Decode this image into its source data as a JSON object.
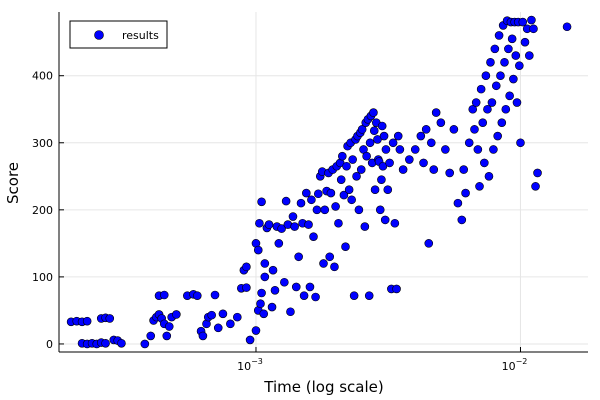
{
  "chart_data": {
    "type": "scatter",
    "xlabel": "Time (log scale)",
    "ylabel": "Score",
    "x_scale": "log",
    "xlim": [
      0.00018,
      0.018
    ],
    "ylim": [
      -12,
      495
    ],
    "x_ticks": [
      {
        "value": 0.001,
        "base": "10",
        "exp": "−3"
      },
      {
        "value": 0.01,
        "base": "10",
        "exp": "−2"
      }
    ],
    "y_ticks": [
      0,
      100,
      200,
      300,
      400
    ],
    "grid": true,
    "legend_position": "top-left",
    "colors": {
      "marker_fill": "#0000ff",
      "marker_stroke": "#000000"
    },
    "series": [
      {
        "name": "results",
        "points": [
          [
            0.0002,
            33
          ],
          [
            0.00021,
            34
          ],
          [
            0.00022,
            33
          ],
          [
            0.00023,
            34
          ],
          [
            0.00022,
            1
          ],
          [
            0.00023,
            0
          ],
          [
            0.00024,
            1
          ],
          [
            0.00025,
            0
          ],
          [
            0.00026,
            38
          ],
          [
            0.00027,
            39
          ],
          [
            0.00028,
            38
          ],
          [
            0.00026,
            2
          ],
          [
            0.00027,
            1
          ],
          [
            0.00029,
            6
          ],
          [
            0.0003,
            5
          ],
          [
            0.00031,
            1
          ],
          [
            0.00038,
            0
          ],
          [
            0.0004,
            12
          ],
          [
            0.00041,
            35
          ],
          [
            0.00042,
            40
          ],
          [
            0.00043,
            44
          ],
          [
            0.00044,
            38
          ],
          [
            0.00045,
            30
          ],
          [
            0.00043,
            72
          ],
          [
            0.00045,
            73
          ],
          [
            0.00046,
            12
          ],
          [
            0.00047,
            26
          ],
          [
            0.00048,
            40
          ],
          [
            0.0005,
            44
          ],
          [
            0.00055,
            72
          ],
          [
            0.00058,
            74
          ],
          [
            0.0006,
            72
          ],
          [
            0.00062,
            19
          ],
          [
            0.00063,
            12
          ],
          [
            0.00065,
            30
          ],
          [
            0.00066,
            40
          ],
          [
            0.00068,
            43
          ],
          [
            0.0007,
            73
          ],
          [
            0.00072,
            24
          ],
          [
            0.00075,
            45
          ],
          [
            0.0008,
            30
          ],
          [
            0.00085,
            40
          ],
          [
            0.00088,
            83
          ],
          [
            0.0009,
            110
          ],
          [
            0.00092,
            115
          ],
          [
            0.00092,
            84
          ],
          [
            0.00095,
            6
          ],
          [
            0.001,
            20
          ],
          [
            0.00102,
            50
          ],
          [
            0.00104,
            60
          ],
          [
            0.00105,
            76
          ],
          [
            0.00107,
            45
          ],
          [
            0.00108,
            100
          ],
          [
            0.001,
            150
          ],
          [
            0.00102,
            140
          ],
          [
            0.00103,
            180
          ],
          [
            0.00105,
            212
          ],
          [
            0.00108,
            120
          ],
          [
            0.0011,
            173
          ],
          [
            0.00112,
            178
          ],
          [
            0.00115,
            55
          ],
          [
            0.00116,
            110
          ],
          [
            0.00118,
            80
          ],
          [
            0.0012,
            175
          ],
          [
            0.00122,
            150
          ],
          [
            0.00125,
            172
          ],
          [
            0.00128,
            92
          ],
          [
            0.0013,
            213
          ],
          [
            0.00132,
            178
          ],
          [
            0.00135,
            48
          ],
          [
            0.00138,
            190
          ],
          [
            0.0014,
            175
          ],
          [
            0.00142,
            85
          ],
          [
            0.00145,
            130
          ],
          [
            0.00148,
            210
          ],
          [
            0.0015,
            180
          ],
          [
            0.00152,
            72
          ],
          [
            0.00155,
            225
          ],
          [
            0.00158,
            178
          ],
          [
            0.0016,
            85
          ],
          [
            0.00162,
            215
          ],
          [
            0.00165,
            160
          ],
          [
            0.00168,
            70
          ],
          [
            0.0017,
            200
          ],
          [
            0.00172,
            224
          ],
          [
            0.00175,
            250
          ],
          [
            0.00178,
            257
          ],
          [
            0.0018,
            120
          ],
          [
            0.00182,
            200
          ],
          [
            0.00185,
            228
          ],
          [
            0.00188,
            255
          ],
          [
            0.0019,
            130
          ],
          [
            0.00192,
            225
          ],
          [
            0.00195,
            260
          ],
          [
            0.00198,
            115
          ],
          [
            0.002,
            205
          ],
          [
            0.00202,
            265
          ],
          [
            0.00205,
            180
          ],
          [
            0.00208,
            270
          ],
          [
            0.0021,
            245
          ],
          [
            0.00212,
            280
          ],
          [
            0.00215,
            222
          ],
          [
            0.00218,
            145
          ],
          [
            0.0022,
            265
          ],
          [
            0.00222,
            295
          ],
          [
            0.00225,
            230
          ],
          [
            0.00228,
            300
          ],
          [
            0.0023,
            215
          ],
          [
            0.00232,
            275
          ],
          [
            0.00235,
            72
          ],
          [
            0.00238,
            305
          ],
          [
            0.0024,
            250
          ],
          [
            0.00242,
            310
          ],
          [
            0.00245,
            200
          ],
          [
            0.00248,
            315
          ],
          [
            0.0025,
            260
          ],
          [
            0.00252,
            320
          ],
          [
            0.00255,
            290
          ],
          [
            0.00258,
            175
          ],
          [
            0.0026,
            330
          ],
          [
            0.00262,
            280
          ],
          [
            0.00265,
            335
          ],
          [
            0.00268,
            72
          ],
          [
            0.0027,
            300
          ],
          [
            0.00272,
            340
          ],
          [
            0.00275,
            270
          ],
          [
            0.00278,
            345
          ],
          [
            0.0028,
            318
          ],
          [
            0.00282,
            230
          ],
          [
            0.00285,
            330
          ],
          [
            0.00288,
            305
          ],
          [
            0.0029,
            275
          ],
          [
            0.00292,
            272
          ],
          [
            0.00295,
            200
          ],
          [
            0.00298,
            245
          ],
          [
            0.003,
            325
          ],
          [
            0.00302,
            265
          ],
          [
            0.00305,
            310
          ],
          [
            0.00308,
            185
          ],
          [
            0.0031,
            290
          ],
          [
            0.00315,
            230
          ],
          [
            0.0032,
            270
          ],
          [
            0.00325,
            82
          ],
          [
            0.0033,
            300
          ],
          [
            0.00335,
            180
          ],
          [
            0.0034,
            82
          ],
          [
            0.00345,
            310
          ],
          [
            0.0035,
            290
          ],
          [
            0.0036,
            260
          ],
          [
            0.0038,
            275
          ],
          [
            0.004,
            290
          ],
          [
            0.0042,
            310
          ],
          [
            0.0043,
            270
          ],
          [
            0.0044,
            320
          ],
          [
            0.0045,
            150
          ],
          [
            0.0046,
            300
          ],
          [
            0.0047,
            260
          ],
          [
            0.0048,
            345
          ],
          [
            0.005,
            330
          ],
          [
            0.0052,
            290
          ],
          [
            0.0054,
            255
          ],
          [
            0.0056,
            320
          ],
          [
            0.0058,
            210
          ],
          [
            0.006,
            185
          ],
          [
            0.0061,
            260
          ],
          [
            0.0062,
            225
          ],
          [
            0.0064,
            300
          ],
          [
            0.0066,
            350
          ],
          [
            0.0067,
            320
          ],
          [
            0.0068,
            360
          ],
          [
            0.0069,
            290
          ],
          [
            0.007,
            235
          ],
          [
            0.0071,
            380
          ],
          [
            0.0072,
            330
          ],
          [
            0.0073,
            270
          ],
          [
            0.0074,
            400
          ],
          [
            0.0075,
            350
          ],
          [
            0.0076,
            250
          ],
          [
            0.0077,
            420
          ],
          [
            0.0078,
            360
          ],
          [
            0.0079,
            290
          ],
          [
            0.008,
            440
          ],
          [
            0.0081,
            385
          ],
          [
            0.0082,
            310
          ],
          [
            0.0083,
            460
          ],
          [
            0.0084,
            400
          ],
          [
            0.0085,
            330
          ],
          [
            0.0086,
            475
          ],
          [
            0.0087,
            420
          ],
          [
            0.0088,
            350
          ],
          [
            0.0089,
            482
          ],
          [
            0.009,
            440
          ],
          [
            0.0091,
            370
          ],
          [
            0.0092,
            480
          ],
          [
            0.0093,
            455
          ],
          [
            0.0094,
            395
          ],
          [
            0.0095,
            480
          ],
          [
            0.0096,
            430
          ],
          [
            0.0097,
            360
          ],
          [
            0.0098,
            480
          ],
          [
            0.0099,
            415
          ],
          [
            0.01,
            300
          ],
          [
            0.0102,
            480
          ],
          [
            0.0104,
            450
          ],
          [
            0.0106,
            470
          ],
          [
            0.0108,
            430
          ],
          [
            0.011,
            483
          ],
          [
            0.0112,
            470
          ],
          [
            0.0114,
            235
          ],
          [
            0.0116,
            255
          ],
          [
            0.015,
            473
          ]
        ]
      }
    ]
  }
}
